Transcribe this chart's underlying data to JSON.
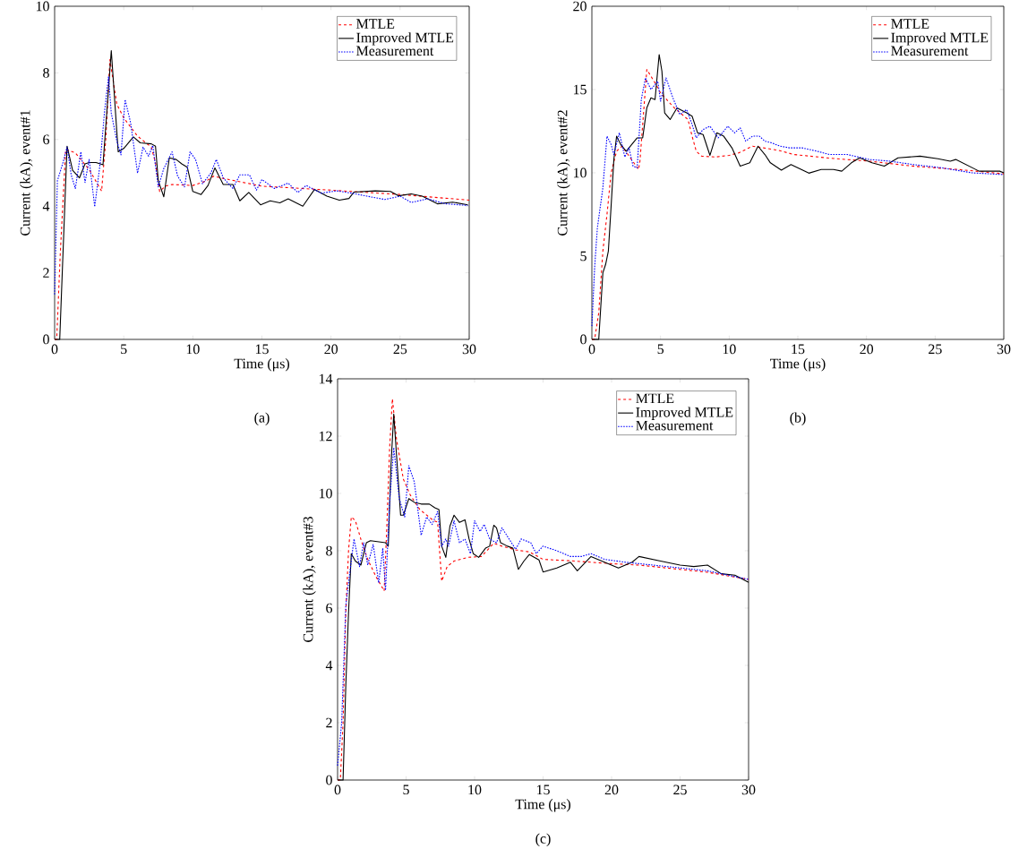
{
  "chart_data": [
    {
      "type": "line",
      "xlabel": "Time (μs)",
      "ylabel": "Current (kA), event#1",
      "xlim": [
        0,
        30
      ],
      "ylim": [
        0,
        10
      ],
      "xticks": [
        0,
        5,
        10,
        15,
        20,
        25,
        30
      ],
      "yticks": [
        0,
        2,
        4,
        6,
        8,
        10
      ],
      "legend": "top right",
      "annotations": [
        "(a)"
      ],
      "series": [
        {
          "name": "MTLE",
          "color": "#ff0000",
          "line_style": "dashed",
          "x": [
            0,
            0.15,
            0.4,
            0.8,
            1.5,
            2.5,
            3.4,
            3.7,
            4.0,
            4.5,
            5,
            6,
            7,
            7.3,
            7.6,
            8,
            8.5,
            10,
            11,
            11.5,
            12,
            15,
            20,
            25,
            30
          ],
          "values": [
            0,
            0,
            2.5,
            5.7,
            5.6,
            5.1,
            4.45,
            6.0,
            8.4,
            7.06,
            6.65,
            6.1,
            5.77,
            5.3,
            4.44,
            4.6,
            4.65,
            4.62,
            4.76,
            4.9,
            4.85,
            4.6,
            4.48,
            4.35,
            4.18
          ]
        },
        {
          "name": "Improved MTLE",
          "color": "#000000",
          "line_style": "solid",
          "x": [
            0,
            0.37,
            0.9,
            1.3,
            1.8,
            2.2,
            2.5,
            3.0,
            3.5,
            4.1,
            4.6,
            5.0,
            5.7,
            6.2,
            7.0,
            7.3,
            7.5,
            7.9,
            8.3,
            8.8,
            9.2,
            9.6,
            10.0,
            10.6,
            11.1,
            11.6,
            12.2,
            12.9,
            13.4,
            14.05,
            14.9,
            15.6,
            16.3,
            16.9,
            17.96,
            18.8,
            19.7,
            20.6,
            21.3,
            21.65,
            23.2,
            24.3,
            24.9,
            25.8,
            26.6,
            27.7,
            28.8,
            29.9
          ],
          "values": [
            0,
            0,
            5.8,
            5.08,
            4.85,
            5.27,
            5.31,
            5.31,
            5.24,
            8.67,
            5.63,
            5.73,
            6.08,
            5.9,
            5.87,
            5.8,
            4.76,
            4.28,
            5.45,
            5.4,
            5.27,
            5.17,
            4.44,
            4.35,
            4.62,
            5.15,
            4.65,
            4.65,
            4.16,
            4.41,
            4.04,
            4.16,
            4.1,
            4.22,
            4.0,
            4.5,
            4.3,
            4.18,
            4.23,
            4.42,
            4.46,
            4.44,
            4.31,
            4.37,
            4.3,
            4.07,
            4.12,
            4.04
          ]
        },
        {
          "name": "Measurement",
          "color": "#0000ff",
          "line_style": "dotted",
          "x": [
            0,
            0.2,
            0.6,
            0.9,
            1.2,
            1.5,
            1.9,
            2.2,
            2.5,
            2.9,
            3.3,
            3.6,
            3.9,
            4.1,
            4.5,
            4.8,
            5.1,
            5.5,
            6.0,
            6.4,
            6.8,
            7.1,
            7.5,
            7.9,
            8.5,
            8.9,
            9.4,
            9.8,
            10.2,
            10.7,
            11.3,
            11.7,
            12.2,
            12.9,
            13.4,
            14.1,
            14.6,
            15.0,
            15.9,
            16.9,
            17.6,
            18.2,
            19.3,
            20.4,
            21.5,
            22.6,
            23.9,
            25.0,
            25.8,
            27.0,
            28.3,
            29.9
          ],
          "values": [
            1.35,
            4.76,
            5.3,
            5.77,
            4.94,
            4.53,
            5.63,
            4.71,
            5.4,
            3.98,
            5.31,
            6.79,
            7.89,
            6.79,
            5.96,
            5.54,
            7.2,
            6.5,
            4.99,
            5.77,
            5.5,
            5.82,
            4.58,
            5.13,
            5.63,
            4.9,
            4.58,
            5.63,
            5.4,
            4.67,
            4.99,
            5.4,
            4.85,
            4.53,
            4.94,
            4.94,
            4.48,
            4.8,
            4.53,
            4.69,
            4.41,
            4.62,
            4.39,
            4.46,
            4.39,
            4.3,
            4.2,
            4.3,
            4.11,
            4.22,
            4.07,
            4.02
          ]
        }
      ]
    },
    {
      "type": "line",
      "xlabel": "Time (μs)",
      "ylabel": "Current (kA), event#2",
      "xlim": [
        0,
        30
      ],
      "ylim": [
        0,
        20
      ],
      "xticks": [
        0,
        5,
        10,
        15,
        20,
        25,
        30
      ],
      "yticks": [
        0,
        5,
        10,
        15,
        20
      ],
      "legend": "top right",
      "annotations": [
        "(b)"
      ],
      "series": [
        {
          "name": "MTLE",
          "color": "#ff0000",
          "line_style": "dashed",
          "x": [
            0,
            0.2,
            0.5,
            0.8,
            1.1,
            1.4,
            1.8,
            2.2,
            3.4,
            3.5,
            4.0,
            4.6,
            5.0,
            6.0,
            7.0,
            7.3,
            7.6,
            8.0,
            9.0,
            10.0,
            10.7,
            11.7,
            12.5,
            13.6,
            14.7,
            17.6,
            20.2,
            23.4,
            26.7,
            30
          ],
          "values": [
            0,
            0,
            1.6,
            5.3,
            7.5,
            10.0,
            11.3,
            11.6,
            10.2,
            10.7,
            16.2,
            15.4,
            14.8,
            13.9,
            13.2,
            12.2,
            11.3,
            11.0,
            10.95,
            11.05,
            11.2,
            11.6,
            11.5,
            11.35,
            11.1,
            10.86,
            10.7,
            10.4,
            10.2,
            9.94
          ]
        },
        {
          "name": "Improved MTLE",
          "color": "#000000",
          "line_style": "solid",
          "x": [
            0,
            0.5,
            0.8,
            1.0,
            1.2,
            1.4,
            1.6,
            1.8,
            2.1,
            2.5,
            2.9,
            3.3,
            3.7,
            4.0,
            4.3,
            4.6,
            4.9,
            5.1,
            5.3,
            5.7,
            6.2,
            6.9,
            7.3,
            7.7,
            8.1,
            8.6,
            9.1,
            9.6,
            10.2,
            10.8,
            11.5,
            12.1,
            12.6,
            13.0,
            13.8,
            14.5,
            15.8,
            16.7,
            17.6,
            18.2,
            18.9,
            19.5,
            20.4,
            21.3,
            22.3,
            23.9,
            25.2,
            26.1,
            26.5,
            28.2,
            29.7,
            30
          ],
          "values": [
            0,
            0,
            4.0,
            4.5,
            5.3,
            8.0,
            10.8,
            12.2,
            11.7,
            11.3,
            11.7,
            12.1,
            12.1,
            13.9,
            14.5,
            14.4,
            17.1,
            16.1,
            13.6,
            13.2,
            13.9,
            13.6,
            13.4,
            12.4,
            12.3,
            11.05,
            12.4,
            12.2,
            11.5,
            10.4,
            10.6,
            11.6,
            11.1,
            10.6,
            10.16,
            10.5,
            9.98,
            10.2,
            10.2,
            10.1,
            10.6,
            10.9,
            10.6,
            10.4,
            10.9,
            11.0,
            10.85,
            10.7,
            10.8,
            10.1,
            10.1,
            10.0
          ]
        },
        {
          "name": "Measurement",
          "color": "#0000ff",
          "line_style": "dotted",
          "x": [
            0,
            0.2,
            0.4,
            0.8,
            1.1,
            1.4,
            1.6,
            2.0,
            2.4,
            2.7,
            3.0,
            3.3,
            3.6,
            3.9,
            4.3,
            4.8,
            5.0,
            5.4,
            5.9,
            6.4,
            6.9,
            7.3,
            7.6,
            8.1,
            8.6,
            9.2,
            9.9,
            10.4,
            10.8,
            11.2,
            11.7,
            12.2,
            12.6,
            13.1,
            13.7,
            14.4,
            15.3,
            16.4,
            17.3,
            18.6,
            20.2,
            21.7,
            23.4,
            25.5,
            27.7,
            29.9
          ],
          "values": [
            0.8,
            4.3,
            6.7,
            9.1,
            12.2,
            11.7,
            11.1,
            12.4,
            10.95,
            11.5,
            10.4,
            10.3,
            14.4,
            15.7,
            15.0,
            15.5,
            14.3,
            15.7,
            14.5,
            13.5,
            13.8,
            12.9,
            12.1,
            12.6,
            12.8,
            12.1,
            12.8,
            12.4,
            12.7,
            11.9,
            12.2,
            12.2,
            11.9,
            11.8,
            11.6,
            11.5,
            11.5,
            11.3,
            11.1,
            11.1,
            10.8,
            10.7,
            10.5,
            10.3,
            10.0,
            9.9
          ]
        }
      ]
    },
    {
      "type": "line",
      "xlabel": "Time (μs)",
      "ylabel": "Current (kA), event#3",
      "xlim": [
        0,
        30
      ],
      "ylim": [
        0,
        14
      ],
      "xticks": [
        0,
        5,
        10,
        15,
        20,
        25,
        30
      ],
      "yticks": [
        0,
        2,
        4,
        6,
        8,
        10,
        12,
        14
      ],
      "legend": "top right",
      "annotations": [
        "(c)"
      ],
      "series": [
        {
          "name": "MTLE",
          "color": "#ff0000",
          "line_style": "dashed",
          "x": [
            0,
            0.2,
            0.4,
            0.6,
            0.8,
            1.0,
            1.3,
            1.7,
            2.2,
            2.8,
            3.4,
            3.6,
            3.8,
            4.0,
            4.3,
            4.8,
            5.3,
            6.0,
            7.0,
            7.3,
            7.6,
            8.0,
            8.5,
            9.5,
            10.5,
            11.4,
            12,
            13,
            14,
            15,
            17,
            20,
            22,
            25,
            27,
            30
          ],
          "values": [
            0,
            0,
            2.0,
            5.85,
            8.0,
            9.18,
            9.05,
            8.4,
            7.7,
            7.1,
            6.6,
            8.9,
            11.6,
            13.3,
            11.9,
            10.5,
            9.95,
            9.44,
            9.05,
            9.0,
            6.94,
            7.45,
            7.64,
            7.77,
            7.8,
            8.26,
            8.16,
            8.03,
            7.96,
            7.7,
            7.65,
            7.55,
            7.5,
            7.35,
            7.25,
            7.0
          ]
        },
        {
          "name": "Improved MTLE",
          "color": "#000000",
          "line_style": "solid",
          "x": [
            0,
            0.4,
            0.6,
            0.8,
            1.0,
            1.3,
            1.7,
            2.1,
            2.4,
            3.5,
            3.7,
            3.9,
            4.1,
            4.3,
            4.6,
            4.8,
            5.2,
            5.6,
            6.1,
            6.7,
            7.1,
            7.4,
            7.6,
            7.9,
            8.2,
            8.5,
            8.9,
            9.3,
            9.6,
            9.9,
            10.3,
            10.8,
            11.1,
            11.4,
            11.6,
            11.9,
            12.4,
            12.8,
            13.2,
            13.6,
            14.0,
            14.7,
            15.0,
            16,
            17,
            17.5,
            18.5,
            19.5,
            20.5,
            21.5,
            22,
            23.5,
            25,
            26,
            27,
            28,
            29,
            30
          ],
          "values": [
            0,
            0,
            3.3,
            5.85,
            7.9,
            7.64,
            7.5,
            8.28,
            8.35,
            8.28,
            8.16,
            11.0,
            12.77,
            11.36,
            9.24,
            9.24,
            9.82,
            9.69,
            9.63,
            9.63,
            9.5,
            9.44,
            8.16,
            7.77,
            8.86,
            9.24,
            8.99,
            9.08,
            8.41,
            7.9,
            7.77,
            8.09,
            8.16,
            8.89,
            8.8,
            8.28,
            8.16,
            8.09,
            7.35,
            7.64,
            7.87,
            7.68,
            7.26,
            7.4,
            7.6,
            7.3,
            7.8,
            7.6,
            7.4,
            7.6,
            7.8,
            7.65,
            7.5,
            7.45,
            7.5,
            7.2,
            7.15,
            6.9
          ]
        },
        {
          "name": "Measurement",
          "color": "#0000ff",
          "line_style": "dotted",
          "x": [
            0,
            0.3,
            0.6,
            0.9,
            1.2,
            1.6,
            1.9,
            2.2,
            2.6,
            3.0,
            3.3,
            3.5,
            3.8,
            4.1,
            4.5,
            4.9,
            5.2,
            5.6,
            6.1,
            6.5,
            6.9,
            7.3,
            7.6,
            7.9,
            8.1,
            8.5,
            8.9,
            9.3,
            9.7,
            10.0,
            10.4,
            10.7,
            11.1,
            11.6,
            12.0,
            12.6,
            13.0,
            13.4,
            14.1,
            14.5,
            15.0,
            16,
            17,
            17.8,
            18.5,
            19.5,
            21,
            23,
            25,
            27,
            30
          ],
          "values": [
            0.5,
            2.0,
            6.1,
            7.26,
            8.41,
            7.45,
            8.28,
            7.5,
            8.22,
            6.88,
            8.09,
            6.62,
            9.69,
            11.6,
            9.82,
            9.18,
            10.97,
            10.4,
            8.54,
            9.18,
            8.92,
            9.37,
            8.16,
            8.41,
            8.16,
            9.05,
            8.28,
            8.41,
            7.9,
            9.05,
            8.67,
            8.92,
            8.41,
            8.28,
            8.8,
            8.35,
            8.05,
            8.41,
            8.28,
            7.9,
            8.16,
            8.0,
            7.8,
            7.8,
            7.9,
            7.7,
            7.6,
            7.5,
            7.4,
            7.3,
            7.0
          ]
        }
      ]
    }
  ]
}
